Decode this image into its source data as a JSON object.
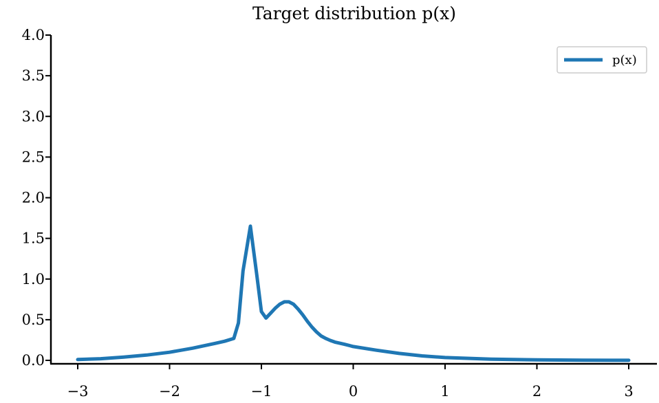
{
  "chart_data": {
    "type": "line",
    "title": "Target distribution p(x)",
    "xlabel": "",
    "ylabel": "",
    "xlim": [
      -3.0,
      3.0
    ],
    "ylim": [
      0.0,
      4.0
    ],
    "x_ticks": [
      -3,
      -2,
      -1,
      0,
      1,
      2,
      3
    ],
    "x_tick_labels": [
      "−3",
      "−2",
      "−1",
      "0",
      "1",
      "2",
      "3"
    ],
    "y_ticks": [
      0.0,
      0.5,
      1.0,
      1.5,
      2.0,
      2.5,
      3.0,
      3.5,
      4.0
    ],
    "y_tick_labels": [
      "0.0",
      "0.5",
      "1.0",
      "1.5",
      "2.0",
      "2.5",
      "3.0",
      "3.5",
      "4.0"
    ],
    "grid": false,
    "legend_position": "top-right",
    "series": [
      {
        "name": "p(x)",
        "color": "#1f77b4",
        "x": [
          -3.0,
          -2.75,
          -2.5,
          -2.25,
          -2.0,
          -1.75,
          -1.5,
          -1.4,
          -1.3,
          -1.25,
          -1.2,
          -1.12,
          -1.05,
          -1.0,
          -0.95,
          -0.9,
          -0.85,
          -0.8,
          -0.75,
          -0.7,
          -0.65,
          -0.6,
          -0.55,
          -0.5,
          -0.45,
          -0.4,
          -0.35,
          -0.3,
          -0.25,
          -0.2,
          -0.1,
          0.0,
          0.25,
          0.5,
          0.75,
          1.0,
          1.5,
          2.0,
          2.5,
          3.0
        ],
        "y": [
          0.01,
          0.02,
          0.04,
          0.065,
          0.1,
          0.15,
          0.21,
          0.235,
          0.27,
          0.46,
          1.1,
          1.65,
          1.05,
          0.6,
          0.52,
          0.58,
          0.64,
          0.69,
          0.72,
          0.72,
          0.69,
          0.63,
          0.56,
          0.48,
          0.41,
          0.35,
          0.3,
          0.27,
          0.245,
          0.225,
          0.2,
          0.17,
          0.125,
          0.085,
          0.055,
          0.035,
          0.015,
          0.006,
          0.002,
          0.001
        ]
      }
    ]
  }
}
